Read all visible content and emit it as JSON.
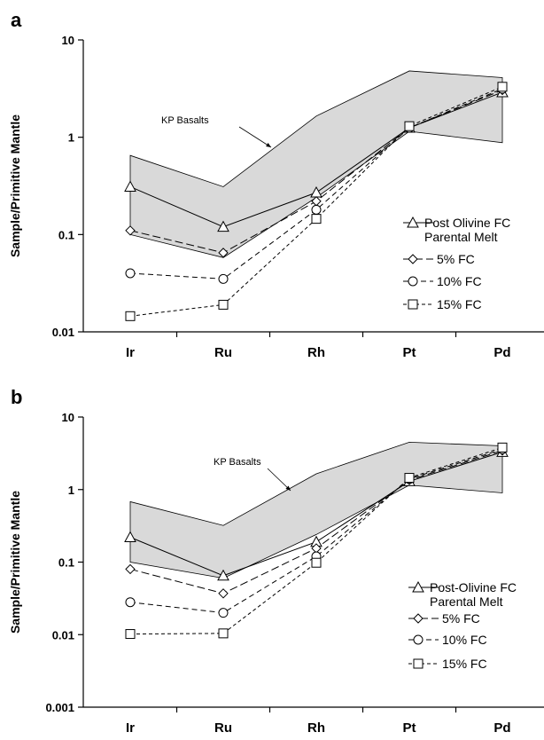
{
  "chart_data": [
    {
      "panel": "a",
      "type": "line",
      "yscale": "log",
      "ylim": [
        0.01,
        10
      ],
      "yticks": [
        "0.01",
        "0.1",
        "1",
        "10"
      ],
      "categories": [
        "Ir",
        "Ru",
        "Rh",
        "Pt",
        "Pd"
      ],
      "ylabel": "Sample/Primitive Mantle",
      "band": {
        "name": "KP Basalts",
        "upper": [
          0.65,
          0.31,
          1.65,
          4.8,
          4.1
        ],
        "lower": [
          0.1,
          0.058,
          0.24,
          1.15,
          0.88
        ]
      },
      "series": [
        {
          "name": "Post Olivine FC Parental Melt",
          "marker": "triangle",
          "dash": "solid",
          "values": [
            0.31,
            0.12,
            0.27,
            1.25,
            2.9
          ]
        },
        {
          "name": "5% FC",
          "marker": "diamond",
          "dash": "long",
          "values": [
            0.11,
            0.065,
            0.22,
            1.25,
            3.05
          ]
        },
        {
          "name": "10% FC",
          "marker": "circle",
          "dash": "medium",
          "values": [
            0.04,
            0.035,
            0.18,
            1.25,
            3.15
          ]
        },
        {
          "name": "15% FC",
          "marker": "square",
          "dash": "short",
          "values": [
            0.0145,
            0.019,
            0.145,
            1.3,
            3.3
          ]
        }
      ],
      "legend_position": "right"
    },
    {
      "panel": "b",
      "type": "line",
      "yscale": "log",
      "ylim": [
        0.001,
        10
      ],
      "yticks": [
        "0.001",
        "0.01",
        "0.1",
        "1",
        "10"
      ],
      "categories": [
        "Ir",
        "Ru",
        "Rh",
        "Pt",
        "Pd"
      ],
      "ylabel": "Sample/Primitive Mantle",
      "band": {
        "name": "KP Basalts",
        "upper": [
          0.68,
          0.32,
          1.65,
          4.5,
          4.0
        ],
        "lower": [
          0.1,
          0.06,
          0.24,
          1.15,
          0.9
        ]
      },
      "series": [
        {
          "name": "Post-Olivine FC Parental Melt",
          "marker": "triangle",
          "dash": "solid",
          "values": [
            0.22,
            0.065,
            0.19,
            1.3,
            3.3
          ]
        },
        {
          "name": "5% FC",
          "marker": "diamond",
          "dash": "long",
          "values": [
            0.08,
            0.037,
            0.155,
            1.35,
            3.45
          ]
        },
        {
          "name": "10% FC",
          "marker": "circle",
          "dash": "medium",
          "values": [
            0.028,
            0.02,
            0.12,
            1.4,
            3.6
          ]
        },
        {
          "name": "15% FC",
          "marker": "square",
          "dash": "short",
          "values": [
            0.0102,
            0.0104,
            0.098,
            1.45,
            3.8
          ]
        }
      ],
      "legend_position": "right"
    }
  ]
}
